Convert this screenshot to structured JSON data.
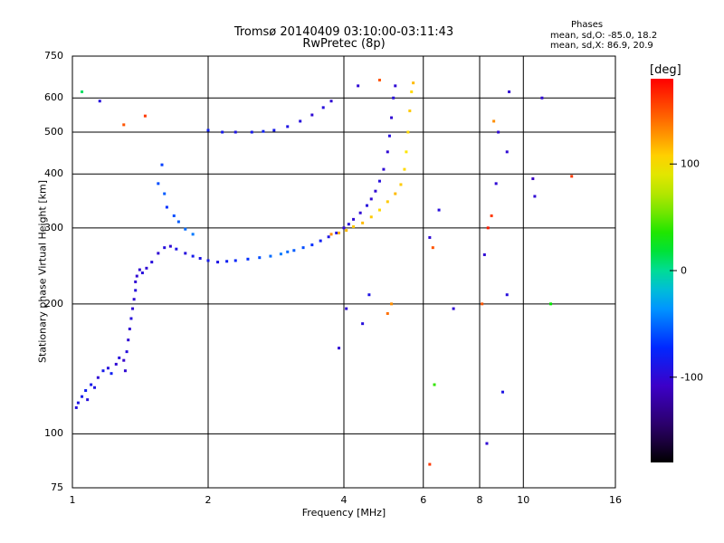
{
  "header": {
    "title_line1": "Tromsø 20140409 03:10:00-03:11:43",
    "title_line2": "RwPretec (8p)",
    "phases_title": "Phases",
    "phases_o": "mean, sd,O: -85.0, 18.2",
    "phases_x": "mean, sd,X: 86.9, 20.9"
  },
  "colors": {
    "grid": "#000000",
    "background": "#ffffff"
  },
  "colorbar": {
    "unit_label": "[deg]",
    "ticks": [
      {
        "value": 100,
        "label": "100"
      },
      {
        "value": 0,
        "label": "0"
      },
      {
        "value": -100,
        "label": "-100"
      }
    ],
    "range": [
      -180,
      180
    ],
    "palette": "rainbow"
  },
  "chart_data": {
    "type": "scatter",
    "title": "Tromsø 20140409 03:10:00-03:11:43",
    "subtitle": "RwPretec (8p)",
    "xlabel": "Frequency [MHz]",
    "ylabel": "Stationary phase Virtual Height [km]",
    "xscale": "log",
    "yscale": "log",
    "xlim": [
      1,
      16
    ],
    "ylim": [
      75,
      750
    ],
    "xticks": [
      {
        "value": 1,
        "label": "1"
      },
      {
        "value": 2,
        "label": "2"
      },
      {
        "value": 4,
        "label": "4"
      },
      {
        "value": 6,
        "label": "6"
      },
      {
        "value": 8,
        "label": "8"
      },
      {
        "value": 10,
        "label": "10"
      },
      {
        "value": 16,
        "label": "16"
      }
    ],
    "yticks": [
      {
        "value": 75,
        "label": "75"
      },
      {
        "value": 100,
        "label": "100"
      },
      {
        "value": 200,
        "label": "200"
      },
      {
        "value": 300,
        "label": "300"
      },
      {
        "value": 400,
        "label": "400"
      },
      {
        "value": 500,
        "label": "500"
      },
      {
        "value": 600,
        "label": "600"
      },
      {
        "value": 750,
        "label": "750"
      }
    ],
    "grid": true,
    "color_variable": "phase [deg]",
    "points": [
      [
        1.02,
        115,
        -95
      ],
      [
        1.03,
        118,
        -90
      ],
      [
        1.05,
        122,
        -85
      ],
      [
        1.07,
        126,
        -80
      ],
      [
        1.08,
        120,
        -95
      ],
      [
        1.1,
        130,
        -85
      ],
      [
        1.12,
        128,
        -90
      ],
      [
        1.14,
        135,
        -100
      ],
      [
        1.17,
        140,
        -85
      ],
      [
        1.2,
        142,
        -95
      ],
      [
        1.22,
        138,
        -80
      ],
      [
        1.25,
        145,
        -100
      ],
      [
        1.27,
        150,
        -95
      ],
      [
        1.3,
        148,
        -105
      ],
      [
        1.31,
        140,
        -100
      ],
      [
        1.32,
        155,
        -95
      ],
      [
        1.33,
        165,
        -100
      ],
      [
        1.34,
        175,
        -100
      ],
      [
        1.35,
        185,
        -95
      ],
      [
        1.36,
        195,
        -100
      ],
      [
        1.37,
        205,
        -100
      ],
      [
        1.38,
        215,
        -95
      ],
      [
        1.38,
        225,
        -100
      ],
      [
        1.39,
        232,
        -100
      ],
      [
        1.41,
        240,
        -100
      ],
      [
        1.43,
        236,
        -95
      ],
      [
        1.46,
        242,
        -100
      ],
      [
        1.5,
        250,
        -95
      ],
      [
        1.55,
        262,
        -100
      ],
      [
        1.6,
        270,
        -95
      ],
      [
        1.65,
        272,
        -100
      ],
      [
        1.7,
        268,
        -90
      ],
      [
        1.78,
        262,
        -95
      ],
      [
        1.85,
        258,
        -85
      ],
      [
        1.92,
        255,
        -90
      ],
      [
        2.0,
        252,
        -85
      ],
      [
        2.1,
        250,
        -90
      ],
      [
        2.2,
        251,
        -80
      ],
      [
        2.3,
        252,
        -75
      ],
      [
        2.45,
        254,
        -70
      ],
      [
        2.6,
        256,
        -60
      ],
      [
        2.75,
        258,
        -50
      ],
      [
        2.9,
        261,
        -45
      ],
      [
        3.0,
        264,
        -50
      ],
      [
        3.1,
        266,
        -55
      ],
      [
        3.25,
        270,
        -60
      ],
      [
        3.4,
        274,
        -70
      ],
      [
        3.55,
        280,
        -80
      ],
      [
        3.7,
        286,
        -90
      ],
      [
        3.85,
        292,
        -95
      ],
      [
        4.0,
        300,
        -100
      ],
      [
        4.1,
        306,
        -95
      ],
      [
        4.2,
        314,
        -100
      ],
      [
        4.35,
        325,
        -100
      ],
      [
        4.5,
        338,
        -95
      ],
      [
        4.6,
        350,
        -100
      ],
      [
        4.7,
        365,
        -100
      ],
      [
        4.8,
        385,
        -95
      ],
      [
        4.9,
        410,
        -100
      ],
      [
        5.0,
        450,
        -100
      ],
      [
        5.05,
        490,
        -95
      ],
      [
        5.1,
        540,
        -100
      ],
      [
        5.15,
        600,
        -95
      ],
      [
        5.2,
        640,
        -100
      ],
      [
        3.75,
        290,
        130
      ],
      [
        3.9,
        292,
        120
      ],
      [
        4.05,
        296,
        115
      ],
      [
        4.2,
        302,
        110
      ],
      [
        4.4,
        308,
        115
      ],
      [
        4.6,
        318,
        110
      ],
      [
        4.8,
        330,
        105
      ],
      [
        5.0,
        345,
        110
      ],
      [
        5.2,
        360,
        115
      ],
      [
        5.35,
        378,
        110
      ],
      [
        5.45,
        410,
        105
      ],
      [
        5.5,
        450,
        100
      ],
      [
        5.55,
        500,
        105
      ],
      [
        5.6,
        560,
        110
      ],
      [
        5.65,
        620,
        105
      ],
      [
        5.7,
        650,
        115
      ],
      [
        1.55,
        380,
        -60
      ],
      [
        1.58,
        420,
        -65
      ],
      [
        1.6,
        360,
        -55
      ],
      [
        1.62,
        335,
        -70
      ],
      [
        1.68,
        320,
        -60
      ],
      [
        1.72,
        310,
        -55
      ],
      [
        1.78,
        298,
        -50
      ],
      [
        1.85,
        290,
        -45
      ],
      [
        2.0,
        505,
        -80
      ],
      [
        2.15,
        500,
        -85
      ],
      [
        2.3,
        500,
        -90
      ],
      [
        2.5,
        500,
        -85
      ],
      [
        2.65,
        502,
        -80
      ],
      [
        2.8,
        505,
        -85
      ],
      [
        3.0,
        515,
        -90
      ],
      [
        3.2,
        530,
        -95
      ],
      [
        3.4,
        548,
        -100
      ],
      [
        3.6,
        570,
        -95
      ],
      [
        3.75,
        590,
        -100
      ],
      [
        1.05,
        620,
        10
      ],
      [
        1.15,
        590,
        -95
      ],
      [
        1.3,
        520,
        150
      ],
      [
        1.45,
        545,
        160
      ],
      [
        4.3,
        640,
        -100
      ],
      [
        4.8,
        660,
        150
      ],
      [
        3.9,
        158,
        -100
      ],
      [
        4.05,
        195,
        -100
      ],
      [
        4.4,
        180,
        -95
      ],
      [
        4.55,
        210,
        -90
      ],
      [
        5.1,
        200,
        130
      ],
      [
        6.2,
        285,
        -100
      ],
      [
        6.3,
        270,
        150
      ],
      [
        6.35,
        130,
        40
      ],
      [
        6.5,
        330,
        -95
      ],
      [
        7.0,
        195,
        -100
      ],
      [
        8.1,
        200,
        150
      ],
      [
        8.2,
        260,
        -100
      ],
      [
        8.35,
        300,
        170
      ],
      [
        8.5,
        320,
        160
      ],
      [
        8.7,
        380,
        -100
      ],
      [
        8.8,
        500,
        -100
      ],
      [
        9.2,
        210,
        -95
      ],
      [
        9.3,
        620,
        -100
      ],
      [
        9.0,
        125,
        -90
      ],
      [
        8.3,
        95,
        -100
      ],
      [
        6.2,
        85,
        160
      ],
      [
        11.0,
        600,
        -100
      ],
      [
        11.5,
        200,
        30
      ],
      [
        12.8,
        395,
        160
      ],
      [
        10.5,
        390,
        -110
      ],
      [
        10.6,
        355,
        -100
      ],
      [
        8.6,
        530,
        130
      ],
      [
        9.2,
        450,
        -100
      ],
      [
        5.0,
        190,
        140
      ]
    ]
  }
}
